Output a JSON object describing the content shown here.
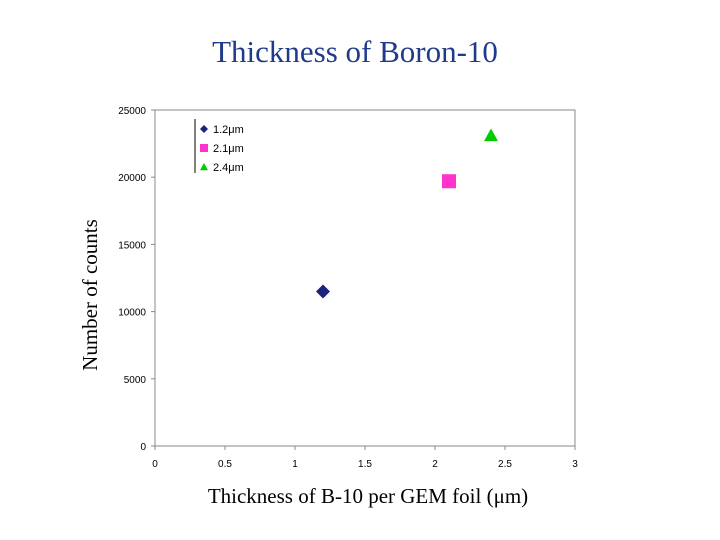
{
  "chart_data": {
    "type": "scatter",
    "title": "Thickness of Boron-10",
    "xlabel": "Thickness of B-10 per GEM foil (μm)",
    "ylabel": "Number of counts",
    "xlim": [
      0,
      3
    ],
    "ylim": [
      0,
      25000
    ],
    "x_ticks": [
      "0",
      "0.5",
      "1",
      "1.5",
      "2",
      "2.5",
      "3"
    ],
    "y_ticks": [
      "0",
      "5000",
      "10000",
      "15000",
      "20000",
      "25000"
    ],
    "grid": false,
    "legend_position": "top-left",
    "series": [
      {
        "name": "1.2μm",
        "marker": "diamond",
        "color": "#1a237e",
        "points": [
          {
            "x": 1.2,
            "y": 11500
          }
        ]
      },
      {
        "name": "2.1μm",
        "marker": "square",
        "color": "#ff33cc",
        "points": [
          {
            "x": 2.1,
            "y": 19700
          }
        ]
      },
      {
        "name": "2.4μm",
        "marker": "triangle",
        "color": "#00cc00",
        "points": [
          {
            "x": 2.4,
            "y": 23100
          }
        ]
      }
    ]
  }
}
